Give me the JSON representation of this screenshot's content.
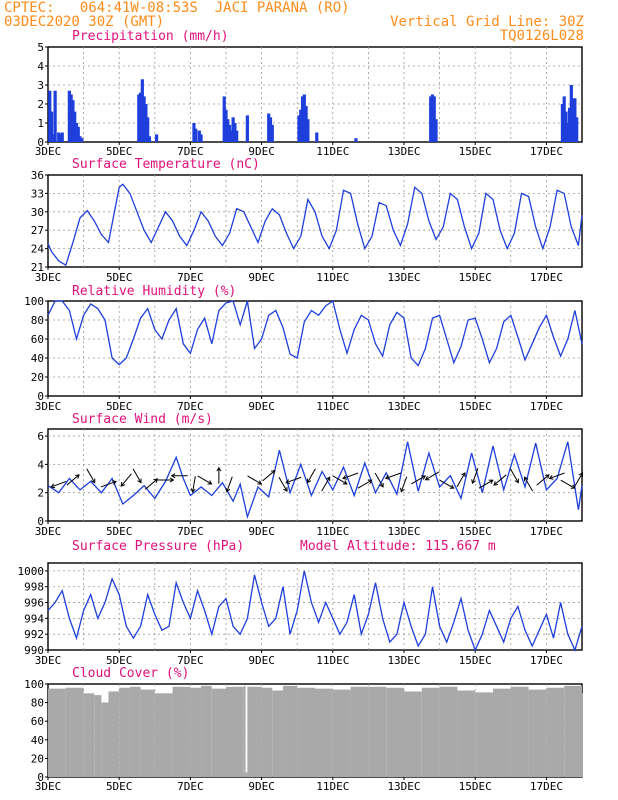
{
  "header": {
    "line1_left": "CPTEC:   064:41W-08:53S  JACI PARANA (RO)",
    "line2_left": "03DEC2020 30Z (GMT)",
    "line1_right": "Vertical Grid Line: 30Z",
    "line2_right": "TQ0126L028"
  },
  "colors": {
    "header": "#ff8c1a",
    "panel_title": "#e0107a",
    "series": "#1f3fdc",
    "cloud": "#a9a9a9",
    "grid": "#9a9a9a",
    "arrow": "#000000"
  },
  "x_ticks": [
    "3DEC",
    "5DEC",
    "7DEC",
    "9DEC",
    "11DEC",
    "13DEC",
    "15DEC",
    "17DEC"
  ],
  "chart_data": [
    {
      "type": "bar",
      "title": "Precipitation (mm/h)",
      "ylim": [
        0,
        5
      ],
      "yticks": [
        0,
        1,
        2,
        3,
        4,
        5
      ],
      "xlim": [
        3,
        18
      ],
      "x": [
        3.05,
        3.1,
        3.15,
        3.2,
        3.3,
        3.35,
        3.4,
        3.6,
        3.65,
        3.7,
        3.75,
        3.8,
        3.85,
        3.9,
        3.95,
        5.55,
        5.6,
        5.65,
        5.7,
        5.75,
        5.8,
        5.85,
        6.05,
        7.1,
        7.15,
        7.25,
        7.3,
        7.95,
        8.0,
        8.05,
        8.1,
        8.15,
        8.2,
        8.25,
        8.3,
        8.6,
        9.2,
        9.25,
        9.3,
        10.05,
        10.1,
        10.15,
        10.2,
        10.25,
        10.3,
        10.55,
        11.65,
        13.75,
        13.8,
        13.85,
        13.9,
        17.45,
        17.5,
        17.55,
        17.6,
        17.65,
        17.7,
        17.75,
        17.8,
        17.85
      ],
      "values": [
        2.7,
        1.6,
        0.4,
        2.7,
        0.5,
        0.4,
        0.5,
        2.7,
        2.5,
        2.2,
        1.6,
        1.0,
        0.8,
        0.3,
        0.2,
        2.5,
        2.6,
        3.3,
        2.4,
        2.0,
        1.3,
        0.3,
        0.4,
        1.0,
        0.7,
        0.6,
        0.4,
        2.4,
        1.7,
        1.2,
        0.9,
        0.6,
        1.3,
        1.0,
        0.6,
        1.4,
        1.5,
        1.3,
        0.9,
        1.4,
        1.7,
        2.4,
        2.5,
        1.9,
        1.2,
        0.5,
        0.2,
        2.4,
        2.5,
        2.4,
        1.2,
        2.0,
        2.4,
        1.6,
        1.0,
        1.8,
        3.0,
        2.3,
        2.3,
        1.3
      ]
    },
    {
      "type": "line",
      "title": "Surface Temperature (nC)",
      "ylim": [
        21,
        36
      ],
      "yticks": [
        21,
        24,
        27,
        30,
        33,
        36
      ],
      "xlim": [
        3,
        18
      ],
      "x": [
        3.0,
        3.1,
        3.3,
        3.5,
        3.7,
        3.9,
        4.1,
        4.3,
        4.5,
        4.7,
        4.9,
        5.0,
        5.1,
        5.3,
        5.5,
        5.7,
        5.9,
        6.1,
        6.3,
        6.5,
        6.7,
        6.9,
        7.1,
        7.3,
        7.5,
        7.7,
        7.9,
        8.1,
        8.3,
        8.5,
        8.7,
        8.9,
        9.1,
        9.3,
        9.5,
        9.7,
        9.9,
        10.1,
        10.3,
        10.5,
        10.7,
        10.9,
        11.1,
        11.3,
        11.5,
        11.7,
        11.9,
        12.1,
        12.3,
        12.5,
        12.7,
        12.9,
        13.1,
        13.3,
        13.5,
        13.7,
        13.9,
        14.1,
        14.3,
        14.5,
        14.7,
        14.9,
        15.1,
        15.3,
        15.5,
        15.7,
        15.9,
        16.1,
        16.3,
        16.5,
        16.7,
        16.9,
        17.1,
        17.3,
        17.5,
        17.7,
        17.9,
        18.0
      ],
      "values": [
        24.8,
        23.5,
        22.0,
        21.3,
        25.0,
        29.0,
        30.2,
        28.5,
        26.3,
        25.0,
        31.0,
        34.0,
        34.5,
        33.0,
        30.0,
        27.0,
        25.0,
        27.5,
        30.0,
        28.5,
        26.0,
        24.5,
        27.0,
        30.0,
        28.5,
        26.0,
        24.5,
        26.5,
        30.5,
        30.0,
        27.5,
        25.0,
        28.5,
        30.5,
        29.5,
        26.5,
        24.0,
        26.0,
        32.0,
        30.0,
        26.0,
        24.0,
        27.0,
        33.5,
        33.0,
        28.0,
        24.0,
        26.0,
        31.5,
        31.0,
        27.0,
        24.5,
        28.0,
        34.0,
        33.0,
        28.5,
        25.5,
        27.5,
        33.0,
        32.0,
        27.5,
        24.0,
        26.5,
        33.0,
        32.0,
        27.0,
        24.0,
        26.5,
        33.0,
        32.5,
        27.5,
        24.0,
        27.5,
        33.5,
        33.0,
        27.5,
        24.5,
        29.5
      ]
    },
    {
      "type": "line",
      "title": "Relative Humidity (%)",
      "ylim": [
        0,
        100
      ],
      "yticks": [
        0,
        20,
        40,
        60,
        80,
        100
      ],
      "xlim": [
        3,
        18
      ],
      "x": [
        3.0,
        3.2,
        3.4,
        3.6,
        3.8,
        4.0,
        4.2,
        4.4,
        4.6,
        4.8,
        5.0,
        5.2,
        5.4,
        5.6,
        5.8,
        6.0,
        6.2,
        6.4,
        6.6,
        6.8,
        7.0,
        7.2,
        7.4,
        7.6,
        7.8,
        8.0,
        8.2,
        8.4,
        8.6,
        8.8,
        9.0,
        9.2,
        9.4,
        9.6,
        9.8,
        10.0,
        10.2,
        10.4,
        10.6,
        10.8,
        11.0,
        11.2,
        11.4,
        11.6,
        11.8,
        12.0,
        12.2,
        12.4,
        12.6,
        12.8,
        13.0,
        13.2,
        13.4,
        13.6,
        13.8,
        14.0,
        14.2,
        14.4,
        14.6,
        14.8,
        15.0,
        15.2,
        15.4,
        15.6,
        15.8,
        16.0,
        16.2,
        16.4,
        16.6,
        16.8,
        17.0,
        17.2,
        17.4,
        17.6,
        17.8,
        18.0
      ],
      "values": [
        85,
        100,
        100,
        90,
        60,
        85,
        97,
        92,
        80,
        40,
        33,
        40,
        60,
        82,
        92,
        70,
        60,
        80,
        92,
        55,
        45,
        70,
        82,
        55,
        90,
        98,
        100,
        75,
        100,
        50,
        60,
        85,
        90,
        72,
        44,
        40,
        78,
        90,
        85,
        95,
        100,
        70,
        45,
        70,
        85,
        80,
        55,
        42,
        75,
        88,
        82,
        40,
        32,
        50,
        82,
        85,
        60,
        35,
        52,
        80,
        82,
        60,
        35,
        50,
        78,
        85,
        62,
        38,
        55,
        72,
        85,
        62,
        42,
        60,
        90,
        55
      ]
    },
    {
      "type": "line",
      "title": "Surface Wind (m/s)",
      "ylim": [
        0,
        6.5
      ],
      "yticks": [
        0,
        2,
        4,
        6
      ],
      "xlim": [
        3,
        18
      ],
      "x": [
        3.0,
        3.3,
        3.6,
        3.9,
        4.2,
        4.5,
        4.8,
        5.1,
        5.4,
        5.7,
        6.0,
        6.3,
        6.6,
        6.8,
        7.0,
        7.3,
        7.6,
        7.9,
        8.2,
        8.4,
        8.6,
        8.9,
        9.2,
        9.5,
        9.8,
        10.1,
        10.4,
        10.7,
        11.0,
        11.3,
        11.6,
        11.9,
        12.2,
        12.5,
        12.8,
        13.1,
        13.4,
        13.7,
        14.0,
        14.3,
        14.6,
        14.9,
        15.2,
        15.5,
        15.8,
        16.1,
        16.4,
        16.7,
        17.0,
        17.3,
        17.6,
        17.9,
        18.0
      ],
      "values": [
        2.5,
        2.0,
        3.0,
        2.2,
        2.8,
        2.0,
        3.0,
        1.2,
        1.8,
        2.5,
        1.6,
        2.8,
        4.5,
        3.0,
        1.8,
        2.4,
        1.8,
        2.7,
        1.4,
        2.6,
        0.3,
        2.4,
        1.7,
        5.0,
        2.0,
        4.0,
        1.8,
        3.5,
        2.2,
        3.8,
        1.8,
        4.1,
        2.0,
        3.4,
        1.9,
        5.6,
        2.1,
        4.8,
        2.4,
        3.2,
        1.6,
        4.8,
        2.0,
        5.3,
        2.2,
        4.7,
        2.4,
        5.5,
        2.2,
        3.0,
        5.6,
        0.8,
        2.5
      ]
    },
    {
      "type": "line",
      "title": "Surface Pressure (hPa)",
      "annotation": "Model Altitude: 115.667 m",
      "ylim": [
        990,
        1001
      ],
      "yticks": [
        990,
        992,
        994,
        996,
        998,
        1000
      ],
      "xlim": [
        3,
        18
      ],
      "x": [
        3.0,
        3.2,
        3.4,
        3.6,
        3.8,
        4.0,
        4.2,
        4.4,
        4.6,
        4.8,
        5.0,
        5.2,
        5.4,
        5.6,
        5.8,
        6.0,
        6.2,
        6.4,
        6.6,
        6.8,
        7.0,
        7.2,
        7.4,
        7.6,
        7.8,
        8.0,
        8.2,
        8.4,
        8.6,
        8.8,
        9.0,
        9.2,
        9.4,
        9.6,
        9.8,
        10.0,
        10.2,
        10.4,
        10.6,
        10.8,
        11.0,
        11.2,
        11.4,
        11.6,
        11.8,
        12.0,
        12.2,
        12.4,
        12.6,
        12.8,
        13.0,
        13.2,
        13.4,
        13.6,
        13.8,
        14.0,
        14.2,
        14.4,
        14.6,
        14.8,
        15.0,
        15.2,
        15.4,
        15.6,
        15.8,
        16.0,
        16.2,
        16.4,
        16.6,
        16.8,
        17.0,
        17.2,
        17.4,
        17.6,
        17.8,
        18.0
      ],
      "values": [
        995,
        996,
        997.5,
        994,
        991.5,
        995,
        997,
        994,
        996,
        999,
        997,
        993,
        991.5,
        993,
        997,
        994.5,
        992.5,
        993,
        998.5,
        996,
        994,
        997.5,
        995,
        992,
        995.5,
        996.5,
        993,
        992,
        994,
        999.5,
        996,
        993,
        994,
        998,
        992,
        995,
        1000,
        996,
        993.5,
        996,
        994,
        992,
        993.5,
        997,
        992,
        994.5,
        998.5,
        994,
        991,
        992,
        996,
        993,
        990.5,
        992,
        998,
        993,
        991,
        993.5,
        996.5,
        992.5,
        990,
        992,
        995,
        993,
        991,
        994,
        995.5,
        992.5,
        990.5,
        992.5,
        994.5,
        991.5,
        996,
        992,
        990,
        993
      ]
    },
    {
      "type": "area",
      "title": "Cloud Cover (%)",
      "ylim": [
        0,
        100
      ],
      "yticks": [
        0,
        20,
        40,
        60,
        80,
        100
      ],
      "xlim": [
        3,
        18
      ],
      "x": [
        3.0,
        3.5,
        4.0,
        4.3,
        4.5,
        4.7,
        5.0,
        5.3,
        5.6,
        6.0,
        6.5,
        7.0,
        7.3,
        7.6,
        8.0,
        8.5,
        8.55,
        8.6,
        9.0,
        9.3,
        9.6,
        10.0,
        10.5,
        11.0,
        11.5,
        12.0,
        12.5,
        13.0,
        13.5,
        14.0,
        14.5,
        15.0,
        15.5,
        16.0,
        16.5,
        17.0,
        17.5,
        18.0
      ],
      "values": [
        95,
        96,
        90,
        88,
        80,
        92,
        96,
        97,
        94,
        90,
        97,
        96,
        98,
        95,
        97,
        98,
        5,
        97,
        96,
        93,
        98,
        96,
        95,
        94,
        97,
        97,
        96,
        92,
        96,
        97,
        93,
        91,
        95,
        97,
        94,
        96,
        98,
        90
      ]
    }
  ]
}
